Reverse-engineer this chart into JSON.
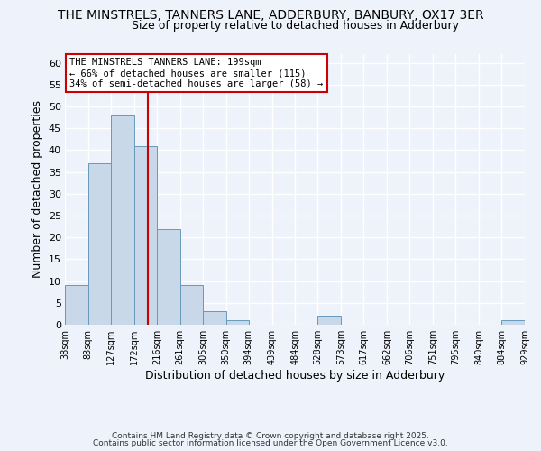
{
  "title": "THE MINSTRELS, TANNERS LANE, ADDERBURY, BANBURY, OX17 3ER",
  "subtitle": "Size of property relative to detached houses in Adderbury",
  "xlabel": "Distribution of detached houses by size in Adderbury",
  "ylabel": "Number of detached properties",
  "bar_color": "#c8d8e8",
  "bar_edge_color": "#6699bb",
  "background_color": "#eef2fa",
  "grid_color": "#ffffff",
  "bins": [
    38,
    83,
    127,
    172,
    216,
    261,
    305,
    350,
    394,
    439,
    484,
    528,
    573,
    617,
    662,
    706,
    751,
    795,
    840,
    884,
    929
  ],
  "bin_labels": [
    "38sqm",
    "83sqm",
    "127sqm",
    "172sqm",
    "216sqm",
    "261sqm",
    "305sqm",
    "350sqm",
    "394sqm",
    "439sqm",
    "484sqm",
    "528sqm",
    "573sqm",
    "617sqm",
    "662sqm",
    "706sqm",
    "751sqm",
    "795sqm",
    "840sqm",
    "884sqm",
    "929sqm"
  ],
  "counts": [
    9,
    37,
    48,
    41,
    22,
    9,
    3,
    1,
    0,
    0,
    0,
    2,
    0,
    0,
    0,
    0,
    0,
    0,
    0,
    1
  ],
  "ylim": [
    0,
    62
  ],
  "yticks": [
    0,
    5,
    10,
    15,
    20,
    25,
    30,
    35,
    40,
    45,
    50,
    55,
    60
  ],
  "vline_color": "#cc0000",
  "vline_x": 199,
  "annotation_text": "THE MINSTRELS TANNERS LANE: 199sqm\n← 66% of detached houses are smaller (115)\n34% of semi-detached houses are larger (58) →",
  "footer_line1": "Contains HM Land Registry data © Crown copyright and database right 2025.",
  "footer_line2": "Contains public sector information licensed under the Open Government Licence v3.0."
}
